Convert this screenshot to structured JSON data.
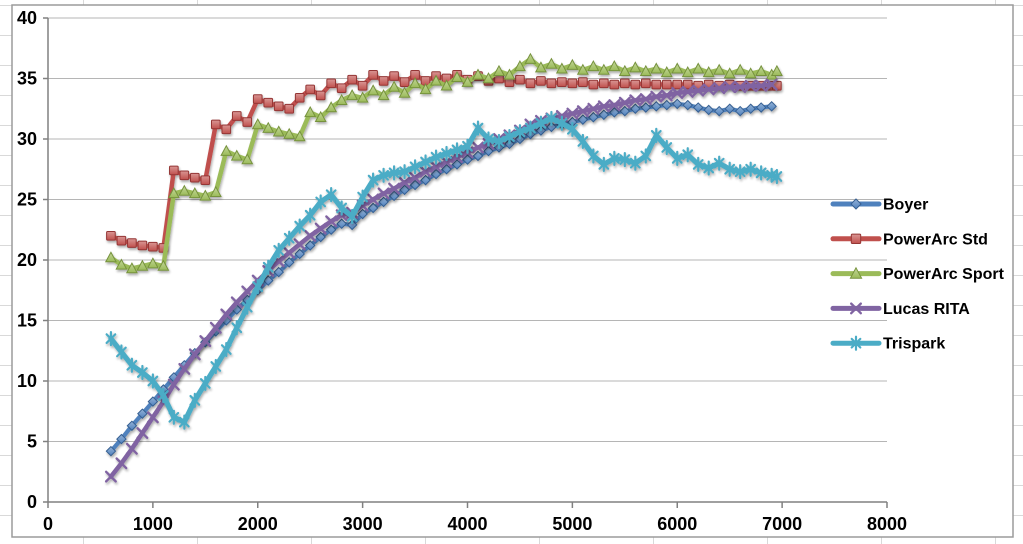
{
  "chart_data": {
    "type": "line",
    "title": "",
    "xlabel": "",
    "ylabel": "",
    "x_axis": {
      "min": 0,
      "max": 8000,
      "step": 1000,
      "tick_labels": [
        "0",
        "1000",
        "2000",
        "3000",
        "4000",
        "5000",
        "6000",
        "7000",
        "8000"
      ]
    },
    "y_axis": {
      "min": 0,
      "max": 40,
      "step": 5,
      "tick_labels": [
        "0",
        "5",
        "10",
        "15",
        "20",
        "25",
        "30",
        "35",
        "40"
      ]
    },
    "grid": true,
    "legend_position": "right",
    "axis_color": "#808080",
    "gridline_color": "#b5b5b5",
    "frame_border_color": "#9b9b9b",
    "sheet_cell_line_color": "#d9d9d9",
    "series": [
      {
        "name": "Boyer",
        "color": "#4F81BD",
        "color_light": "#95B3D7",
        "color_dark": "#365F91",
        "marker": "diamond",
        "x": [
          600,
          700,
          800,
          900,
          1000,
          1100,
          1200,
          1300,
          1400,
          1500,
          1600,
          1700,
          1800,
          1900,
          2000,
          2100,
          2200,
          2300,
          2400,
          2500,
          2600,
          2700,
          2800,
          2900,
          3000,
          3100,
          3200,
          3300,
          3400,
          3500,
          3600,
          3700,
          3800,
          3900,
          4000,
          4100,
          4200,
          4300,
          4400,
          4500,
          4600,
          4700,
          4800,
          4900,
          5000,
          5100,
          5200,
          5300,
          5400,
          5500,
          5600,
          5700,
          5800,
          5900,
          6000,
          6100,
          6200,
          6300,
          6400,
          6500,
          6600,
          6700,
          6800,
          6900
        ],
        "values": [
          4.2,
          5.2,
          6.3,
          7.3,
          8.3,
          9.3,
          10.3,
          11.3,
          12.3,
          13.2,
          14.1,
          15.0,
          15.9,
          16.7,
          17.5,
          18.3,
          19.0,
          19.8,
          20.5,
          21.2,
          21.9,
          22.5,
          23.0,
          22.9,
          23.8,
          24.3,
          24.8,
          25.3,
          25.8,
          26.2,
          26.6,
          27.1,
          27.5,
          27.9,
          28.3,
          28.6,
          29.0,
          29.3,
          29.6,
          30.0,
          30.4,
          30.7,
          31.0,
          31.2,
          31.4,
          31.6,
          31.8,
          32.0,
          32.2,
          32.3,
          32.5,
          32.6,
          32.7,
          32.8,
          32.9,
          32.8,
          32.6,
          32.4,
          32.3,
          32.5,
          32.3,
          32.5,
          32.6,
          32.7
        ]
      },
      {
        "name": "PowerArc Std",
        "color": "#C0504D",
        "color_light": "#D99694",
        "color_dark": "#943634",
        "marker": "square",
        "x": [
          600,
          700,
          800,
          900,
          1000,
          1100,
          1200,
          1300,
          1400,
          1500,
          1600,
          1700,
          1800,
          1900,
          2000,
          2100,
          2200,
          2300,
          2400,
          2500,
          2600,
          2700,
          2800,
          2900,
          3000,
          3100,
          3200,
          3300,
          3400,
          3500,
          3600,
          3700,
          3800,
          3900,
          4000,
          4100,
          4200,
          4300,
          4400,
          4500,
          4600,
          4700,
          4800,
          4900,
          5000,
          5100,
          5200,
          5300,
          5400,
          5500,
          5600,
          5700,
          5800,
          5900,
          6000,
          6100,
          6200,
          6300,
          6400,
          6500,
          6600,
          6700,
          6800,
          6900,
          6950
        ],
        "values": [
          22.0,
          21.6,
          21.4,
          21.2,
          21.1,
          21.0,
          27.4,
          27.0,
          26.8,
          26.6,
          31.2,
          30.8,
          31.9,
          31.4,
          33.3,
          33.0,
          32.7,
          32.5,
          33.4,
          34.1,
          33.6,
          34.6,
          34.2,
          34.9,
          34.4,
          35.3,
          34.8,
          35.2,
          34.7,
          35.3,
          34.8,
          35.2,
          35.0,
          35.3,
          34.9,
          35.2,
          34.8,
          35.0,
          34.7,
          34.9,
          34.6,
          34.8,
          34.6,
          34.7,
          34.6,
          34.7,
          34.5,
          34.6,
          34.5,
          34.6,
          34.5,
          34.6,
          34.5,
          34.5,
          34.5,
          34.5,
          34.4,
          34.5,
          34.4,
          34.5,
          34.4,
          34.4,
          34.4,
          34.4,
          34.4
        ]
      },
      {
        "name": "PowerArc Sport",
        "color": "#9BBB59",
        "color_light": "#C3D69B",
        "color_dark": "#76923C",
        "marker": "triangle",
        "x": [
          600,
          700,
          800,
          900,
          1000,
          1100,
          1200,
          1300,
          1400,
          1500,
          1600,
          1700,
          1800,
          1900,
          2000,
          2100,
          2200,
          2300,
          2400,
          2500,
          2600,
          2700,
          2800,
          2900,
          3000,
          3100,
          3200,
          3300,
          3400,
          3500,
          3600,
          3700,
          3800,
          3900,
          4000,
          4100,
          4200,
          4300,
          4400,
          4500,
          4600,
          4700,
          4800,
          4900,
          5000,
          5100,
          5200,
          5300,
          5400,
          5500,
          5600,
          5700,
          5800,
          5900,
          6000,
          6100,
          6200,
          6300,
          6400,
          6500,
          6600,
          6700,
          6800,
          6900,
          6950
        ],
        "values": [
          20.2,
          19.6,
          19.3,
          19.5,
          19.7,
          19.5,
          25.5,
          25.7,
          25.5,
          25.3,
          25.6,
          29.0,
          28.6,
          28.3,
          31.2,
          30.9,
          30.6,
          30.4,
          30.2,
          32.2,
          31.8,
          32.6,
          33.2,
          33.6,
          33.4,
          34.0,
          33.6,
          34.3,
          33.8,
          34.6,
          34.1,
          34.8,
          34.4,
          35.1,
          34.7,
          35.3,
          35.0,
          35.6,
          35.3,
          36.0,
          36.6,
          35.9,
          36.2,
          35.8,
          36.1,
          35.7,
          36.0,
          35.7,
          36.0,
          35.6,
          35.9,
          35.6,
          35.8,
          35.5,
          35.8,
          35.5,
          35.8,
          35.5,
          35.7,
          35.4,
          35.7,
          35.4,
          35.6,
          35.3,
          35.6
        ]
      },
      {
        "name": "Lucas RITA",
        "color": "#8064A2",
        "color_light": "#B3A2C7",
        "color_dark": "#60497A",
        "marker": "x",
        "x": [
          600,
          700,
          800,
          900,
          1000,
          1100,
          1200,
          1300,
          1400,
          1500,
          1600,
          1700,
          1800,
          1900,
          2000,
          2100,
          2200,
          2300,
          2400,
          2500,
          2600,
          2700,
          2800,
          2900,
          3000,
          3100,
          3200,
          3300,
          3400,
          3500,
          3600,
          3700,
          3800,
          3900,
          4000,
          4100,
          4200,
          4300,
          4400,
          4500,
          4600,
          4700,
          4800,
          4900,
          5000,
          5100,
          5200,
          5300,
          5400,
          5500,
          5600,
          5700,
          5800,
          5900,
          6000,
          6100,
          6200,
          6300,
          6400,
          6500,
          6600,
          6700,
          6800,
          6900
        ],
        "values": [
          2.1,
          3.2,
          4.4,
          5.7,
          7.0,
          8.3,
          9.7,
          11.0,
          12.2,
          13.3,
          14.4,
          15.5,
          16.5,
          17.4,
          18.3,
          19.1,
          19.9,
          20.6,
          21.3,
          22.0,
          22.6,
          23.2,
          23.7,
          23.9,
          24.5,
          25.0,
          25.5,
          25.9,
          26.4,
          26.8,
          27.3,
          27.7,
          28.1,
          28.5,
          28.9,
          29.3,
          29.6,
          30.0,
          30.3,
          30.7,
          31.2,
          31.5,
          31.7,
          31.9,
          32.1,
          32.3,
          32.5,
          32.7,
          32.8,
          33.0,
          33.2,
          33.3,
          33.5,
          33.6,
          33.8,
          33.9,
          34.0,
          34.1,
          34.2,
          34.3,
          34.3,
          34.4,
          34.4,
          34.5
        ]
      },
      {
        "name": "Trispark",
        "color": "#4BACC6",
        "color_light": "#93CDDD",
        "color_dark": "#31859B",
        "marker": "star",
        "x": [
          600,
          700,
          800,
          900,
          1000,
          1100,
          1200,
          1300,
          1400,
          1500,
          1600,
          1700,
          1800,
          1900,
          2000,
          2100,
          2200,
          2300,
          2400,
          2500,
          2600,
          2700,
          2800,
          2900,
          3000,
          3100,
          3200,
          3300,
          3400,
          3500,
          3600,
          3700,
          3800,
          3900,
          4000,
          4100,
          4200,
          4300,
          4400,
          4500,
          4600,
          4700,
          4800,
          4900,
          5000,
          5100,
          5200,
          5300,
          5400,
          5500,
          5600,
          5700,
          5800,
          5900,
          6000,
          6100,
          6200,
          6300,
          6400,
          6500,
          6600,
          6700,
          6800,
          6900,
          6950
        ],
        "values": [
          13.5,
          12.4,
          11.3,
          10.7,
          10.0,
          8.8,
          7.0,
          6.6,
          8.4,
          9.8,
          11.2,
          12.6,
          14.4,
          16.1,
          17.8,
          19.4,
          20.8,
          21.8,
          22.8,
          23.7,
          24.8,
          25.4,
          24.3,
          23.6,
          25.2,
          26.6,
          27.0,
          27.2,
          27.3,
          27.7,
          28.1,
          28.5,
          28.8,
          29.1,
          29.4,
          30.9,
          30.0,
          29.8,
          30.2,
          30.6,
          30.9,
          31.3,
          31.7,
          31.3,
          30.8,
          29.8,
          28.6,
          27.9,
          28.4,
          28.3,
          28.0,
          28.6,
          30.3,
          29.3,
          28.4,
          28.7,
          27.9,
          27.6,
          28.0,
          27.5,
          27.3,
          27.5,
          27.2,
          27.0,
          26.9
        ]
      }
    ],
    "legend": {
      "items": [
        "Boyer",
        "PowerArc Std",
        "PowerArc Sport",
        "Lucas RITA",
        "Trispark"
      ]
    }
  }
}
